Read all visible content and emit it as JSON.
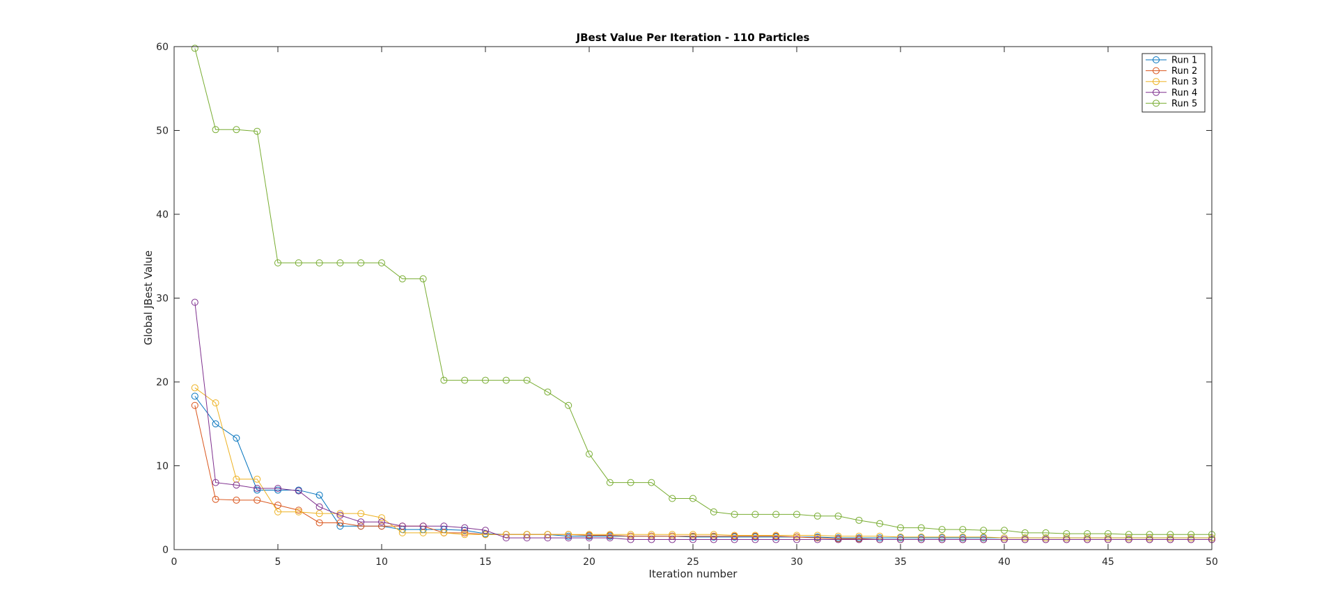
{
  "chart_data": {
    "type": "line",
    "title": "JBest Value Per Iteration - 110 Particles",
    "xlabel": "Iteration number",
    "ylabel": "Global JBest Value",
    "xlim": [
      0,
      50
    ],
    "ylim": [
      0,
      60
    ],
    "xticks": [
      0,
      5,
      10,
      15,
      20,
      25,
      30,
      35,
      40,
      45,
      50
    ],
    "yticks": [
      0,
      10,
      20,
      30,
      40,
      50,
      60
    ],
    "grid": false,
    "marker": "circle",
    "legend_position": "top-right",
    "x": [
      1,
      2,
      3,
      4,
      5,
      6,
      7,
      8,
      9,
      10,
      11,
      12,
      13,
      14,
      15,
      16,
      17,
      18,
      19,
      20,
      21,
      22,
      23,
      24,
      25,
      26,
      27,
      28,
      29,
      30,
      31,
      32,
      33,
      34,
      35,
      36,
      37,
      38,
      39,
      40,
      41,
      42,
      43,
      44,
      45,
      46,
      47,
      48,
      49,
      50
    ],
    "series": [
      {
        "name": "Run 1",
        "color": "#0072BD",
        "values": [
          18.3,
          15.0,
          13.3,
          7.1,
          7.1,
          7.1,
          6.5,
          2.8,
          2.8,
          2.8,
          2.4,
          2.4,
          2.4,
          2.3,
          1.9,
          1.8,
          1.8,
          1.8,
          1.6,
          1.6,
          1.6,
          1.6,
          1.6,
          1.6,
          1.5,
          1.5,
          1.5,
          1.5,
          1.5,
          1.5,
          1.5,
          1.4,
          1.4,
          1.4,
          1.4,
          1.4,
          1.4,
          1.4,
          1.4,
          1.4,
          1.4,
          1.4,
          1.4,
          1.4,
          1.4,
          1.4,
          1.4,
          1.4,
          1.4,
          1.4
        ]
      },
      {
        "name": "Run 2",
        "color": "#D95319",
        "values": [
          17.2,
          6.0,
          5.9,
          5.9,
          5.3,
          4.7,
          3.2,
          3.2,
          2.8,
          2.8,
          2.8,
          2.8,
          2.0,
          2.0,
          1.8,
          1.8,
          1.8,
          1.8,
          1.8,
          1.7,
          1.7,
          1.6,
          1.6,
          1.6,
          1.6,
          1.6,
          1.6,
          1.6,
          1.6,
          1.5,
          1.4,
          1.3,
          1.3,
          1.2,
          1.2,
          1.2,
          1.2,
          1.2,
          1.2,
          1.2,
          1.2,
          1.2,
          1.2,
          1.2,
          1.2,
          1.2,
          1.2,
          1.2,
          1.2,
          1.2
        ]
      },
      {
        "name": "Run 3",
        "color": "#EDB120",
        "values": [
          19.3,
          17.5,
          8.4,
          8.4,
          4.5,
          4.5,
          4.3,
          4.3,
          4.3,
          3.8,
          2.0,
          2.0,
          2.0,
          1.8,
          1.8,
          1.8,
          1.8,
          1.8,
          1.8,
          1.8,
          1.8,
          1.8,
          1.8,
          1.8,
          1.8,
          1.8,
          1.7,
          1.7,
          1.7,
          1.7,
          1.7,
          1.6,
          1.6,
          1.6,
          1.5,
          1.5,
          1.5,
          1.5,
          1.5,
          1.4,
          1.4,
          1.4,
          1.4,
          1.4,
          1.4,
          1.4,
          1.4,
          1.4,
          1.4,
          1.4
        ]
      },
      {
        "name": "Run 4",
        "color": "#7E2F8E",
        "values": [
          29.5,
          8.0,
          7.7,
          7.3,
          7.3,
          7.0,
          5.1,
          4.1,
          3.3,
          3.3,
          2.8,
          2.8,
          2.8,
          2.6,
          2.3,
          1.4,
          1.4,
          1.4,
          1.4,
          1.4,
          1.4,
          1.2,
          1.2,
          1.2,
          1.2,
          1.2,
          1.2,
          1.2,
          1.2,
          1.2,
          1.2,
          1.2,
          1.2,
          1.2,
          1.2,
          1.2,
          1.2,
          1.2,
          1.2,
          1.2,
          1.2,
          1.2,
          1.2,
          1.2,
          1.2,
          1.2,
          1.2,
          1.2,
          1.2,
          1.2
        ]
      },
      {
        "name": "Run 5",
        "color": "#77AC30",
        "values": [
          59.8,
          50.1,
          50.1,
          49.9,
          34.2,
          34.2,
          34.2,
          34.2,
          34.2,
          34.2,
          32.3,
          32.3,
          20.2,
          20.2,
          20.2,
          20.2,
          20.2,
          18.8,
          17.2,
          11.4,
          8.0,
          8.0,
          8.0,
          6.1,
          6.1,
          4.5,
          4.2,
          4.2,
          4.2,
          4.2,
          4.0,
          4.0,
          3.5,
          3.1,
          2.6,
          2.6,
          2.4,
          2.4,
          2.3,
          2.3,
          2.0,
          2.0,
          1.9,
          1.9,
          1.9,
          1.8,
          1.8,
          1.8,
          1.8,
          1.8
        ]
      }
    ]
  }
}
